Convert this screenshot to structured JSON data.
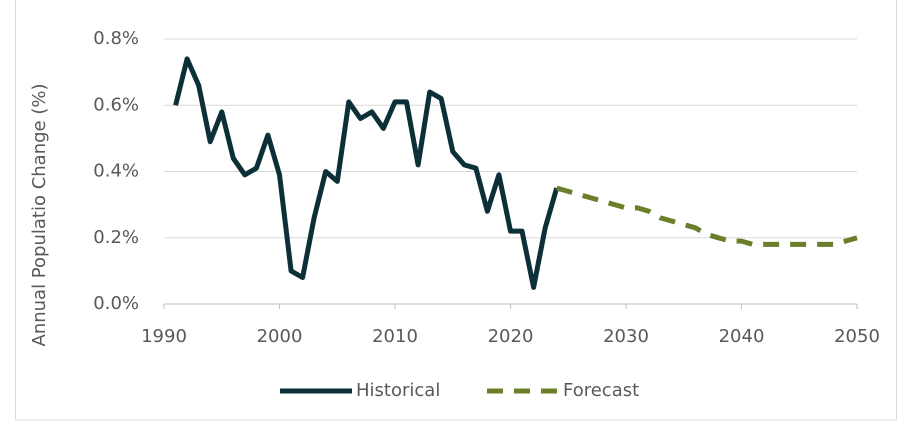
{
  "chart_data": {
    "type": "line",
    "y_label": "Annual Populatio Change (%)",
    "xlim": [
      1990,
      2050
    ],
    "xticks": [
      1990,
      2000,
      2010,
      2020,
      2030,
      2040,
      2050
    ],
    "ylim": [
      0,
      0.8
    ],
    "yticks": [
      {
        "value": 0,
        "label": "0.0%"
      },
      {
        "value": 0.2,
        "label": "0.2%"
      },
      {
        "value": 0.4,
        "label": "0.4%"
      },
      {
        "value": 0.6,
        "label": "0.6%"
      },
      {
        "value": 0.8,
        "label": "0.8%"
      }
    ],
    "grid": true,
    "legend": "bottom",
    "series": [
      {
        "name": "Historical",
        "color": "#0d3038",
        "dashed": false,
        "x": [
          1991,
          1992,
          1993,
          1994,
          1995,
          1996,
          1997,
          1998,
          1999,
          2000,
          2001,
          2002,
          2003,
          2004,
          2005,
          2006,
          2007,
          2008,
          2009,
          2010,
          2011,
          2012,
          2013,
          2014,
          2015,
          2016,
          2017,
          2018,
          2019,
          2020,
          2021,
          2022,
          2023,
          2024
        ],
        "values": [
          0.6,
          0.74,
          0.66,
          0.49,
          0.58,
          0.44,
          0.39,
          0.41,
          0.51,
          0.39,
          0.1,
          0.08,
          0.26,
          0.4,
          0.37,
          0.61,
          0.56,
          0.58,
          0.53,
          0.61,
          0.61,
          0.42,
          0.64,
          0.62,
          0.46,
          0.42,
          0.41,
          0.28,
          0.39,
          0.22,
          0.22,
          0.05,
          0.23,
          0.35
        ]
      },
      {
        "name": "Forecast",
        "color": "#6b7f2a",
        "dashed": true,
        "x": [
          2024,
          2025,
          2026,
          2027,
          2028,
          2029,
          2030,
          2031,
          2032,
          2033,
          2034,
          2035,
          2036,
          2037,
          2038,
          2039,
          2040,
          2041,
          2042,
          2043,
          2044,
          2045,
          2046,
          2047,
          2048,
          2049,
          2050
        ],
        "values": [
          0.35,
          0.34,
          0.33,
          0.32,
          0.31,
          0.3,
          0.29,
          0.29,
          0.28,
          0.26,
          0.25,
          0.24,
          0.23,
          0.21,
          0.2,
          0.19,
          0.19,
          0.18,
          0.18,
          0.18,
          0.18,
          0.18,
          0.18,
          0.18,
          0.18,
          0.19,
          0.2
        ]
      }
    ]
  }
}
